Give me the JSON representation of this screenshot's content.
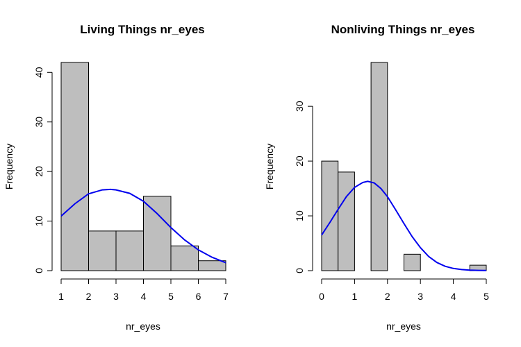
{
  "chart_data": [
    {
      "type": "histogram",
      "title": "Living Things nr_eyes",
      "xlabel": "nr_eyes",
      "ylabel": "Frequency",
      "xlim": [
        1,
        7
      ],
      "ylim": [
        0,
        42
      ],
      "x_ticks": [
        1,
        2,
        3,
        4,
        5,
        6,
        7
      ],
      "y_ticks": [
        0,
        10,
        20,
        30,
        40
      ],
      "bins": [
        {
          "from": 1,
          "to": 2,
          "count": 42
        },
        {
          "from": 2,
          "to": 3,
          "count": 8
        },
        {
          "from": 3,
          "to": 4,
          "count": 8
        },
        {
          "from": 4,
          "to": 5,
          "count": 15
        },
        {
          "from": 5,
          "to": 6,
          "count": 5
        },
        {
          "from": 6,
          "to": 7,
          "count": 2
        }
      ],
      "curve": {
        "color": "#0000ee",
        "x": [
          1,
          1.5,
          2,
          2.5,
          2.8,
          3,
          3.5,
          4,
          4.5,
          5,
          5.5,
          6,
          6.5,
          7
        ],
        "y": [
          11,
          13.5,
          15.5,
          16.3,
          16.4,
          16.3,
          15.6,
          14.0,
          11.5,
          8.7,
          6.2,
          4.2,
          2.7,
          1.6
        ]
      }
    },
    {
      "type": "histogram",
      "title": "Nonliving Things nr_eyes",
      "xlabel": "nr_eyes",
      "ylabel": "Frequency",
      "xlim": [
        0,
        5
      ],
      "ylim": [
        0,
        38
      ],
      "x_ticks": [
        0,
        1,
        2,
        3,
        4,
        5
      ],
      "y_ticks": [
        0,
        10,
        20,
        30
      ],
      "bins": [
        {
          "from": 0,
          "to": 0.5,
          "count": 20
        },
        {
          "from": 0.5,
          "to": 1,
          "count": 18
        },
        {
          "from": 1,
          "to": 1.5,
          "count": 0
        },
        {
          "from": 1.5,
          "to": 2,
          "count": 38
        },
        {
          "from": 2,
          "to": 2.5,
          "count": 0
        },
        {
          "from": 2.5,
          "to": 3,
          "count": 3
        },
        {
          "from": 3,
          "to": 3.5,
          "count": 0
        },
        {
          "from": 3.5,
          "to": 4,
          "count": 0
        },
        {
          "from": 4,
          "to": 4.5,
          "count": 0
        },
        {
          "from": 4.5,
          "to": 5,
          "count": 1
        }
      ],
      "curve": {
        "color": "#0000ee",
        "x": [
          0,
          0.25,
          0.5,
          0.75,
          1,
          1.25,
          1.4,
          1.6,
          1.8,
          2,
          2.25,
          2.5,
          2.75,
          3,
          3.25,
          3.5,
          3.75,
          4,
          4.25,
          4.5,
          4.75,
          5
        ],
        "y": [
          6.5,
          8.8,
          11.2,
          13.5,
          15.2,
          16.1,
          16.3,
          16.0,
          15.0,
          13.5,
          11.1,
          8.6,
          6.2,
          4.2,
          2.6,
          1.5,
          0.8,
          0.4,
          0.2,
          0.1,
          0.05,
          0.02
        ]
      }
    }
  ]
}
